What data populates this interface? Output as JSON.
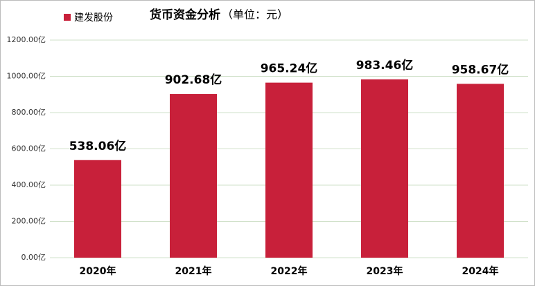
{
  "chart_data": {
    "type": "bar",
    "title": "货币资金分析",
    "subtitle": "（单位：元）",
    "categories": [
      "2020年",
      "2021年",
      "2022年",
      "2023年",
      "2024年"
    ],
    "series": [
      {
        "name": "建发股份",
        "color": "#c8203a",
        "values": [
          538.06,
          902.68,
          965.24,
          983.46,
          958.67
        ],
        "value_labels": [
          "538.06亿",
          "902.68亿",
          "965.24亿",
          "983.46亿",
          "958.67亿"
        ]
      }
    ],
    "ylim": [
      0,
      1200
    ],
    "yticks": [
      {
        "value": 0,
        "label": "0.00亿"
      },
      {
        "value": 200,
        "label": "200.00亿"
      },
      {
        "value": 400,
        "label": "400.00亿"
      },
      {
        "value": 600,
        "label": "600.00亿"
      },
      {
        "value": 800,
        "label": "800.00亿"
      },
      {
        "value": 1000,
        "label": "1000.00亿"
      },
      {
        "value": 1200,
        "label": "1200.00亿"
      }
    ],
    "grid": true,
    "legend": "top-left"
  }
}
